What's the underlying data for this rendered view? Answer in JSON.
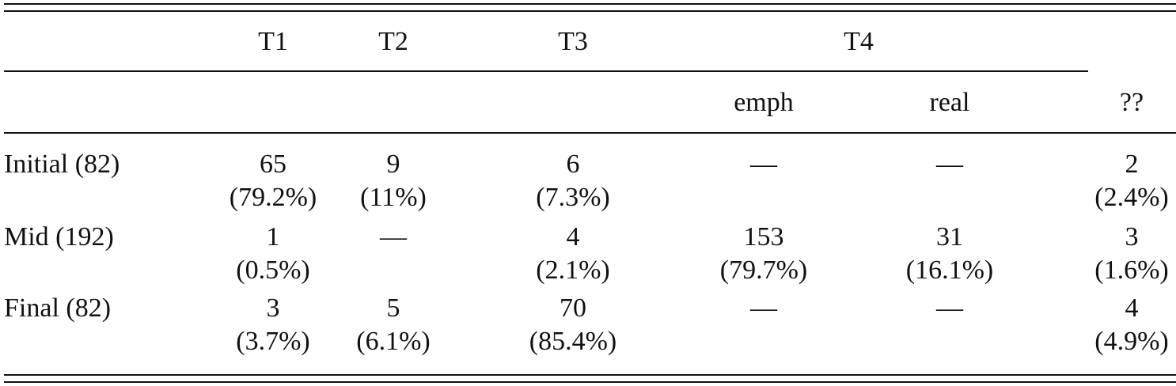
{
  "table": {
    "header": [
      "T1",
      "T2",
      "T3",
      "T4"
    ],
    "subheader": [
      "emph",
      "real",
      "??"
    ],
    "rows": [
      {
        "label": "Initial (82)",
        "cells": [
          [
            "65",
            "(79.2%)"
          ],
          [
            "9",
            "(11%)"
          ],
          [
            "6",
            "(7.3%)"
          ],
          [
            "—"
          ],
          [
            "—"
          ],
          [
            "2",
            "(2.4%)"
          ]
        ]
      },
      {
        "label": "Mid (192)",
        "cells": [
          [
            "1",
            "(0.5%)"
          ],
          [
            "—"
          ],
          [
            "4",
            "(2.1%)"
          ],
          [
            "153",
            "(79.7%)"
          ],
          [
            "31",
            "(16.1%)"
          ],
          [
            "3",
            "(1.6%)"
          ]
        ]
      },
      {
        "label": "Final (82)",
        "cells": [
          [
            "3",
            "(3.7%)"
          ],
          [
            "5",
            "(6.1%)"
          ],
          [
            "70",
            "(85.4%)"
          ],
          [
            "—"
          ],
          [
            "—"
          ],
          [
            "4",
            "(4.9%)"
          ]
        ]
      }
    ]
  }
}
